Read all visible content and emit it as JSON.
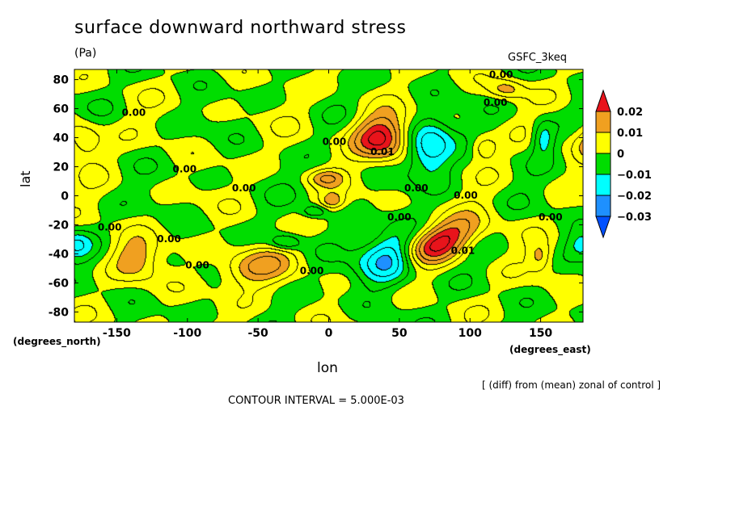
{
  "chart_data": {
    "type": "heatmap",
    "title": "surface downward northward stress",
    "units": "(Pa)",
    "dataset": "GSFC_3keq",
    "xlabel": "lon",
    "ylabel": "lat",
    "x_unit_note": "(degrees_east)",
    "y_unit_note": "(degrees_north)",
    "xlim": [
      -180,
      180
    ],
    "ylim": [
      -87,
      87
    ],
    "x_ticks": [
      -150,
      -100,
      -50,
      0,
      50,
      100,
      150
    ],
    "y_ticks": [
      80,
      60,
      40,
      20,
      0,
      -20,
      -40,
      -60,
      -80
    ],
    "note": "[ (diff) from (mean) zonal of control ]",
    "contour_interval_text": "CONTOUR INTERVAL = 5.000E-03",
    "colorbar": {
      "levels": [
        0.02,
        0.01,
        0,
        -0.01,
        -0.02,
        -0.03
      ],
      "labels": [
        "0.02",
        "0.01",
        "0",
        "−0.01",
        "−0.02",
        "−0.03"
      ],
      "colors": [
        "#e8141b",
        "#f0a020",
        "#ffff00",
        "#00dd00",
        "#00ffff",
        "#1e90ff",
        "#0050ff"
      ]
    },
    "contour_labels": [
      {
        "text": "0.00",
        "lon": 122,
        "lat": 83
      },
      {
        "text": "0.00",
        "lon": 118,
        "lat": 64
      },
      {
        "text": "0.00",
        "lon": -138,
        "lat": 57
      },
      {
        "text": "0.00",
        "lon": 4,
        "lat": 37
      },
      {
        "text": "0.01",
        "lon": 38,
        "lat": 30
      },
      {
        "text": "0.00",
        "lon": -102,
        "lat": 18
      },
      {
        "text": "0.00",
        "lon": -60,
        "lat": 5
      },
      {
        "text": "0.00",
        "lon": 62,
        "lat": 5
      },
      {
        "text": "0.00",
        "lon": 97,
        "lat": 0
      },
      {
        "text": "0.00",
        "lon": -155,
        "lat": -22
      },
      {
        "text": "0.00",
        "lon": -113,
        "lat": -30
      },
      {
        "text": "0.00",
        "lon": 50,
        "lat": -15
      },
      {
        "text": "0.00",
        "lon": 157,
        "lat": -15
      },
      {
        "text": "0.01",
        "lon": 95,
        "lat": -38
      },
      {
        "text": "0.00",
        "lon": -93,
        "lat": -48
      },
      {
        "text": "0.00",
        "lon": -12,
        "lat": -52
      }
    ],
    "anomalies": [
      {
        "lon": 37,
        "lat": 40,
        "sx": 14,
        "sy": 11,
        "amp": 0.027
      },
      {
        "lon": 78,
        "lat": -32,
        "sx": 20,
        "sy": 9,
        "amp": 0.028,
        "rot": -0.35
      },
      {
        "lon": 72,
        "lat": 33,
        "sx": 12,
        "sy": 14,
        "amp": -0.022
      },
      {
        "lon": 44,
        "lat": -42,
        "sx": 16,
        "sy": 12,
        "amp": -0.025,
        "rot": -0.5
      },
      {
        "lon": 152,
        "lat": 40,
        "sx": 6,
        "sy": 9,
        "amp": -0.014
      },
      {
        "lon": -30,
        "lat": -32,
        "sx": 8,
        "sy": 4,
        "amp": -0.014
      },
      {
        "lon": -10,
        "lat": -11,
        "sx": 6,
        "sy": 3,
        "amp": -0.012
      },
      {
        "lon": -180,
        "lat": -34,
        "sx": 8,
        "sy": 7,
        "amp": -0.012
      },
      {
        "lon": 3,
        "lat": -4,
        "sx": 6,
        "sy": 4,
        "amp": 0.012
      },
      {
        "lon": -2,
        "lat": 12,
        "sx": 9,
        "sy": 4,
        "amp": 0.011
      },
      {
        "lon": -173,
        "lat": 38,
        "sx": 9,
        "sy": 9,
        "amp": 0.013
      },
      {
        "lon": 110,
        "lat": 33,
        "sx": 7,
        "sy": 6,
        "amp": 0.012
      },
      {
        "lon": 126,
        "lat": 73,
        "sx": 9,
        "sy": 5,
        "amp": 0.012
      },
      {
        "lon": -137,
        "lat": -43,
        "sx": 12,
        "sy": 10,
        "amp": 0.013
      },
      {
        "lon": -55,
        "lat": -50,
        "sx": 18,
        "sy": 9,
        "amp": 0.015,
        "rot": -0.2
      },
      {
        "lon": 150,
        "lat": -42,
        "sx": 6,
        "sy": 7,
        "amp": 0.011
      }
    ]
  }
}
